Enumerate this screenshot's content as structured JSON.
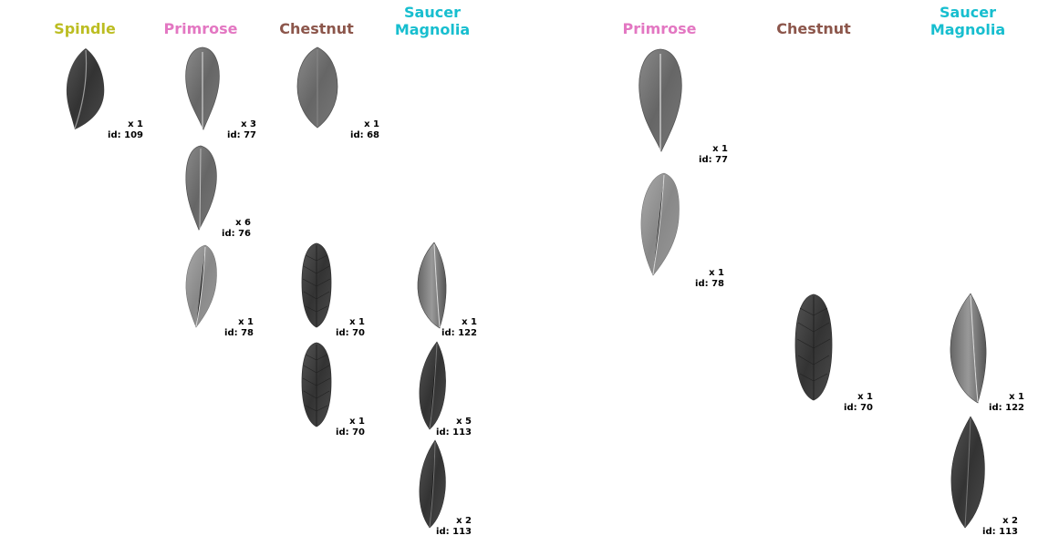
{
  "colors": {
    "spindle": "#bcbd22",
    "primrose": "#e377c2",
    "chestnut": "#8c564b",
    "saucer_magnolia": "#17becf"
  },
  "left_panel": {
    "headers": {
      "spindle": "Spindle",
      "primrose": "Primrose",
      "chestnut": "Chestnut",
      "saucer_magnolia": "Saucer\nMagnolia"
    },
    "leaves": [
      {
        "count": "x 1",
        "id": "id: 109"
      },
      {
        "count": "x 3",
        "id": "id: 77"
      },
      {
        "count": "x 6",
        "id": "id: 76"
      },
      {
        "count": "x 1",
        "id": "id: 78"
      },
      {
        "count": "x 1",
        "id": "id: 68"
      },
      {
        "count": "x 1",
        "id": "id: 70"
      },
      {
        "count": "x 1",
        "id": "id: 70"
      },
      {
        "count": "x 1",
        "id": "id: 122"
      },
      {
        "count": "x 5",
        "id": "id: 113"
      },
      {
        "count": "x 2",
        "id": "id: 113"
      }
    ]
  },
  "right_panel": {
    "headers": {
      "primrose": "Primrose",
      "chestnut": "Chestnut",
      "saucer_magnolia": "Saucer\nMagnolia"
    },
    "leaves": [
      {
        "count": "x 1",
        "id": "id: 77"
      },
      {
        "count": "x 1",
        "id": "id: 78"
      },
      {
        "count": "x 1",
        "id": "id: 70"
      },
      {
        "count": "x 1",
        "id": "id: 122"
      },
      {
        "count": "x 2",
        "id": "id: 113"
      }
    ]
  }
}
